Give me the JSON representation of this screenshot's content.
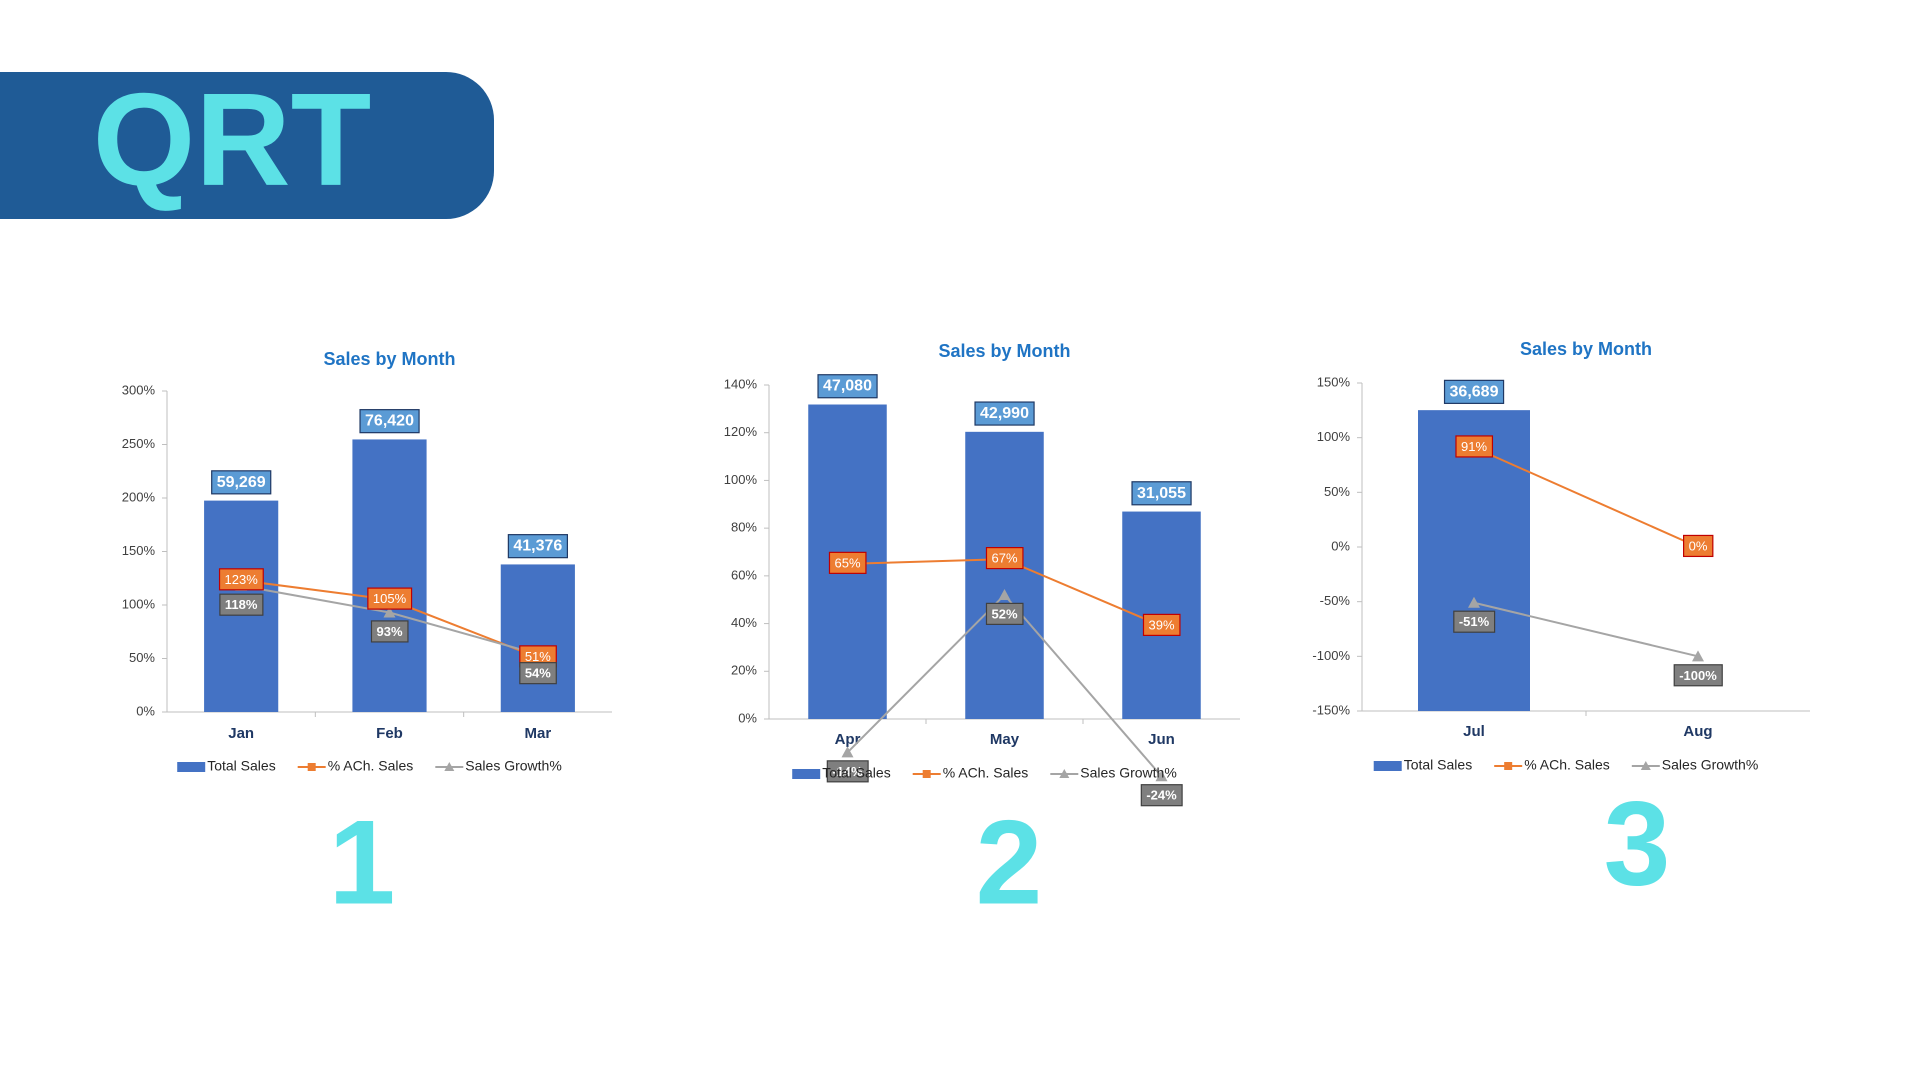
{
  "header": {
    "title": "QRT"
  },
  "panel_numbers": [
    "1",
    "2",
    "3"
  ],
  "chart_data": [
    {
      "type": "combo",
      "title": "Sales by Month",
      "categories": [
        "Jan",
        "Feb",
        "Mar"
      ],
      "ylim": [
        0,
        300
      ],
      "yticks": [
        {
          "value": 0,
          "label": "0%"
        },
        {
          "value": 50,
          "label": "50%"
        },
        {
          "value": 100,
          "label": "100%"
        },
        {
          "value": 150,
          "label": "150%"
        },
        {
          "value": 200,
          "label": "200%"
        },
        {
          "value": 250,
          "label": "250%"
        },
        {
          "value": 300,
          "label": "300%"
        }
      ],
      "y2lim": [
        0,
        90000
      ],
      "series": [
        {
          "name": "Total Sales",
          "kind": "bar",
          "axis": "y2",
          "color": "#4472c4",
          "values": [
            59269,
            76420,
            41376
          ],
          "value_labels": [
            "59,269",
            "76,420",
            "41,376"
          ]
        },
        {
          "name": "% ACh. Sales",
          "kind": "line",
          "marker": "square",
          "color": "#ed7d31",
          "values": [
            123,
            105,
            51
          ],
          "value_labels": [
            "123%",
            "105%",
            "51%"
          ]
        },
        {
          "name": "Sales Growth%",
          "kind": "line",
          "marker": "triangle",
          "color": "#a5a5a5",
          "values": [
            118,
            93,
            54
          ],
          "value_labels": [
            "118%",
            "93%",
            "54%"
          ]
        }
      ]
    },
    {
      "type": "combo",
      "title": "Sales by Month",
      "categories": [
        "Apr",
        "May",
        "Jun"
      ],
      "ylim": [
        0,
        140
      ],
      "yticks": [
        {
          "value": 0,
          "label": "0%"
        },
        {
          "value": 20,
          "label": "20%"
        },
        {
          "value": 40,
          "label": "40%"
        },
        {
          "value": 60,
          "label": "60%"
        },
        {
          "value": 80,
          "label": "80%"
        },
        {
          "value": 100,
          "label": "100%"
        },
        {
          "value": 120,
          "label": "120%"
        },
        {
          "value": 140,
          "label": "140%"
        }
      ],
      "y2lim": [
        0,
        50000
      ],
      "series": [
        {
          "name": "Total Sales",
          "kind": "bar",
          "axis": "y2",
          "color": "#4472c4",
          "values": [
            47080,
            42990,
            31055
          ],
          "value_labels": [
            "47,080",
            "42,990",
            "31,055"
          ]
        },
        {
          "name": "% ACh. Sales",
          "kind": "line",
          "marker": "square",
          "color": "#ed7d31",
          "values": [
            65,
            67,
            39
          ],
          "value_labels": [
            "65%",
            "67%",
            "39%"
          ]
        },
        {
          "name": "Sales Growth%",
          "kind": "line",
          "marker": "triangle",
          "color": "#a5a5a5",
          "values": [
            -14,
            52,
            -24
          ],
          "value_labels": [
            "-14%",
            "52%",
            "-24%"
          ]
        }
      ]
    },
    {
      "type": "combo",
      "title": "Sales by Month",
      "categories": [
        "Jul",
        "Aug"
      ],
      "ylim": [
        -150,
        150
      ],
      "yticks": [
        {
          "value": -150,
          "label": "-150%"
        },
        {
          "value": -100,
          "label": "-100%"
        },
        {
          "value": -50,
          "label": "-50%"
        },
        {
          "value": 0,
          "label": "0%"
        },
        {
          "value": 50,
          "label": "50%"
        },
        {
          "value": 100,
          "label": "100%"
        },
        {
          "value": 150,
          "label": "150%"
        }
      ],
      "y2lim": [
        0,
        40000
      ],
      "series": [
        {
          "name": "Total Sales",
          "kind": "bar",
          "axis": "y2",
          "color": "#4472c4",
          "values": [
            36689,
            null
          ],
          "value_labels": [
            "36,689",
            null
          ]
        },
        {
          "name": "% ACh. Sales",
          "kind": "line",
          "marker": "square",
          "color": "#ed7d31",
          "values": [
            91,
            0
          ],
          "value_labels": [
            "91%",
            "0%"
          ]
        },
        {
          "name": "Sales Growth%",
          "kind": "line",
          "marker": "triangle",
          "color": "#a5a5a5",
          "values": [
            -51,
            -100
          ],
          "value_labels": [
            "-51%",
            "-100%"
          ]
        }
      ]
    }
  ]
}
